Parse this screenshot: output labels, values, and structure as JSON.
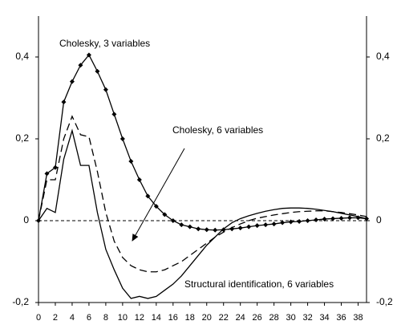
{
  "chart_data": {
    "type": "line",
    "x": [
      0,
      1,
      2,
      3,
      4,
      5,
      6,
      7,
      8,
      9,
      10,
      11,
      12,
      13,
      14,
      15,
      16,
      17,
      18,
      19,
      20,
      21,
      22,
      23,
      24,
      25,
      26,
      27,
      28,
      29,
      30,
      31,
      32,
      33,
      34,
      35,
      36,
      37,
      38,
      39
    ],
    "xlim": [
      0,
      39
    ],
    "xticks": [
      0,
      2,
      4,
      6,
      8,
      10,
      12,
      14,
      16,
      18,
      20,
      22,
      24,
      26,
      28,
      30,
      32,
      34,
      36,
      38
    ],
    "ylim": [
      -0.2,
      0.5
    ],
    "yticks": [
      {
        "value": -0.2,
        "label": "-0,2"
      },
      0,
      {
        "value": 0.2,
        "label": "0,2"
      },
      {
        "value": 0.4,
        "label": "0,4"
      }
    ],
    "zero_line": true,
    "series": [
      {
        "name": "Cholesky, 3 variables",
        "color": "#000000",
        "dashed": false,
        "markers": true,
        "values": [
          0,
          0.115,
          0.13,
          0.29,
          0.34,
          0.38,
          0.405,
          0.365,
          0.32,
          0.26,
          0.2,
          0.145,
          0.1,
          0.06,
          0.035,
          0.015,
          0,
          -0.01,
          -0.015,
          -0.02,
          -0.022,
          -0.023,
          -0.022,
          -0.02,
          -0.018,
          -0.015,
          -0.012,
          -0.01,
          -0.008,
          -0.005,
          -0.003,
          -0.002,
          0,
          0.002,
          0.004,
          0.005,
          0.006,
          0.007,
          0.007,
          0.005
        ]
      },
      {
        "name": "Cholesky, 6 variables",
        "color": "#000000",
        "dashed": true,
        "markers": false,
        "values": [
          0,
          0.1,
          0.1,
          0.2,
          0.255,
          0.21,
          0.205,
          0.12,
          0.02,
          -0.05,
          -0.09,
          -0.11,
          -0.12,
          -0.125,
          -0.125,
          -0.12,
          -0.11,
          -0.1,
          -0.085,
          -0.07,
          -0.055,
          -0.04,
          -0.028,
          -0.017,
          -0.008,
          0,
          0.006,
          0.01,
          0.014,
          0.017,
          0.02,
          0.022,
          0.023,
          0.024,
          0.024,
          0.022,
          0.02,
          0.017,
          0.014,
          0.01
        ]
      },
      {
        "name": "Structural identification, 6 variables",
        "color": "#000000",
        "dashed": false,
        "markers": false,
        "values": [
          0,
          0.03,
          0.02,
          0.15,
          0.22,
          0.135,
          0.135,
          0.02,
          -0.07,
          -0.12,
          -0.165,
          -0.19,
          -0.185,
          -0.19,
          -0.185,
          -0.17,
          -0.155,
          -0.135,
          -0.11,
          -0.085,
          -0.06,
          -0.04,
          -0.02,
          -0.005,
          0.005,
          0.012,
          0.018,
          0.023,
          0.027,
          0.03,
          0.031,
          0.031,
          0.03,
          0.028,
          0.025,
          0.022,
          0.018,
          0.014,
          0.01,
          0.005
        ]
      }
    ]
  }
}
